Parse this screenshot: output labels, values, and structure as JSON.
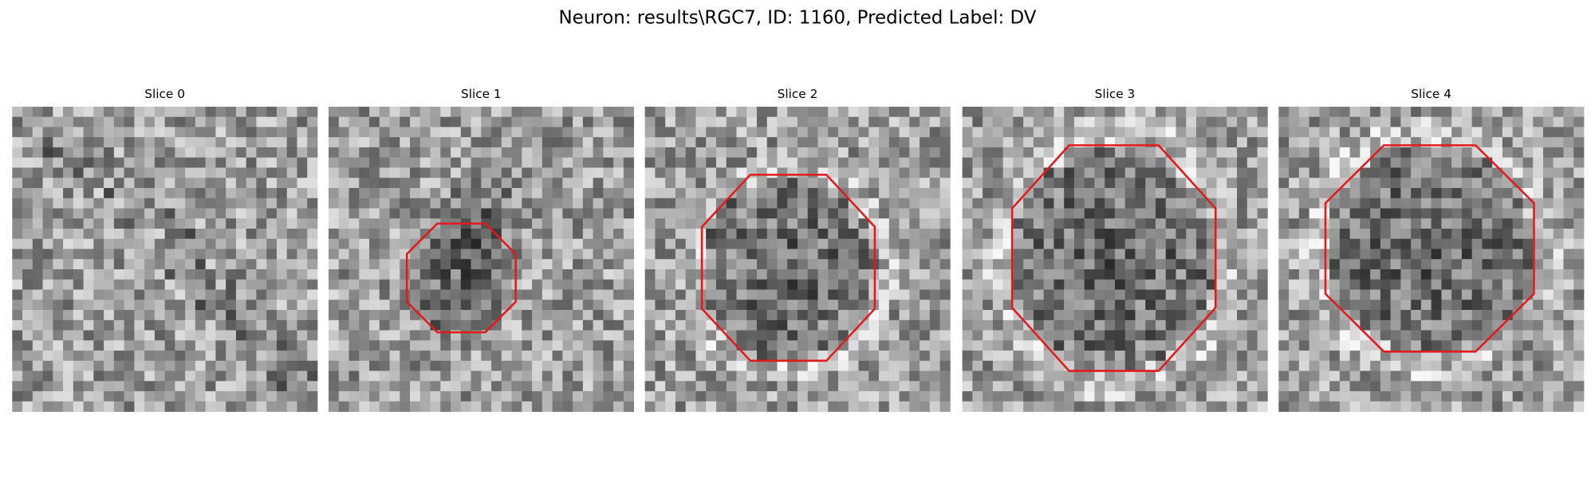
{
  "title": "Neuron: results\\RGC7, ID: 1160, Predicted Label: DV",
  "panels": [
    {
      "title": "Slice 0"
    },
    {
      "title": "Slice 1"
    },
    {
      "title": "Slice 2"
    },
    {
      "title": "Slice 3"
    },
    {
      "title": "Slice 4"
    }
  ]
}
